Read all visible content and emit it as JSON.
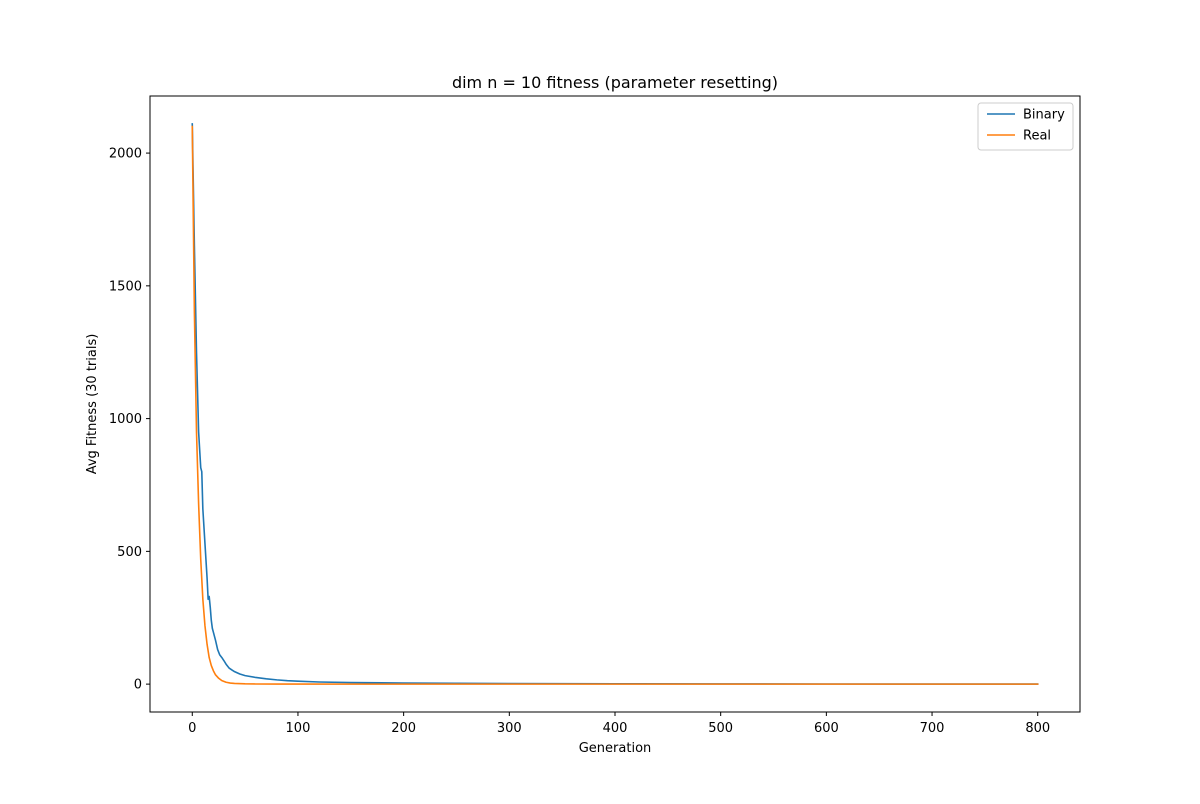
{
  "chart_data": {
    "type": "line",
    "title": "dim n = 10 fitness (parameter resetting)",
    "xlabel": "Generation",
    "ylabel": "Avg Fitness (30 trials)",
    "xlim": [
      -40,
      840
    ],
    "ylim": [
      -105,
      2215
    ],
    "xticks": [
      0,
      100,
      200,
      300,
      400,
      500,
      600,
      700,
      800
    ],
    "yticks": [
      0,
      500,
      1000,
      1500,
      2000
    ],
    "grid": false,
    "legend_position": "top-right",
    "series": [
      {
        "name": "Binary",
        "color": "#1f77b4",
        "points": [
          [
            0,
            2110
          ],
          [
            2,
            1650
          ],
          [
            4,
            1250
          ],
          [
            6,
            950
          ],
          [
            8,
            815
          ],
          [
            9,
            800
          ],
          [
            10,
            660
          ],
          [
            12,
            530
          ],
          [
            14,
            400
          ],
          [
            15,
            320
          ],
          [
            16,
            330
          ],
          [
            17,
            290
          ],
          [
            18,
            240
          ],
          [
            19,
            210
          ],
          [
            20,
            195
          ],
          [
            22,
            165
          ],
          [
            24,
            130
          ],
          [
            26,
            110
          ],
          [
            28,
            100
          ],
          [
            30,
            88
          ],
          [
            32,
            75
          ],
          [
            35,
            60
          ],
          [
            38,
            52
          ],
          [
            40,
            47
          ],
          [
            45,
            38
          ],
          [
            50,
            32
          ],
          [
            60,
            25
          ],
          [
            70,
            20
          ],
          [
            80,
            16
          ],
          [
            90,
            13
          ],
          [
            100,
            11
          ],
          [
            120,
            8
          ],
          [
            150,
            6
          ],
          [
            200,
            4
          ],
          [
            300,
            2
          ],
          [
            400,
            1.2
          ],
          [
            500,
            0.8
          ],
          [
            600,
            0.5
          ],
          [
            700,
            0.3
          ],
          [
            800,
            0.2
          ]
        ]
      },
      {
        "name": "Real",
        "color": "#ff7f0e",
        "points": [
          [
            0,
            2100
          ],
          [
            2,
            1400
          ],
          [
            4,
            950
          ],
          [
            6,
            680
          ],
          [
            8,
            470
          ],
          [
            10,
            320
          ],
          [
            12,
            220
          ],
          [
            14,
            150
          ],
          [
            16,
            100
          ],
          [
            18,
            70
          ],
          [
            20,
            50
          ],
          [
            22,
            35
          ],
          [
            25,
            22
          ],
          [
            28,
            13
          ],
          [
            32,
            7
          ],
          [
            36,
            4
          ],
          [
            40,
            2.5
          ],
          [
            50,
            1
          ],
          [
            60,
            0.5
          ],
          [
            80,
            0.2
          ],
          [
            100,
            0.1
          ],
          [
            200,
            0
          ],
          [
            400,
            0
          ],
          [
            600,
            0
          ],
          [
            800,
            0
          ]
        ]
      }
    ]
  }
}
